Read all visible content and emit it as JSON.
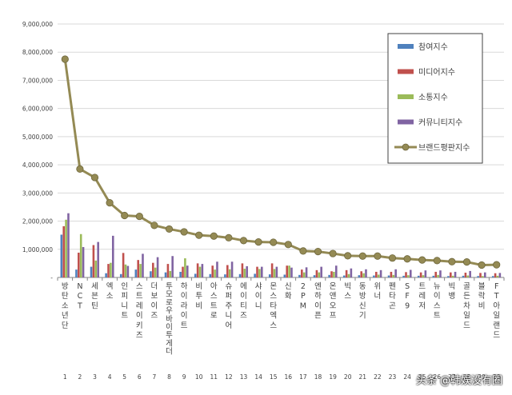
{
  "chart_data": {
    "type": "bar",
    "categories": [
      "방탄소년단",
      "NCT",
      "세븐틴",
      "엑소",
      "인피니트",
      "스트레이키즈",
      "더보이즈",
      "투모로우바이투게더",
      "하이라이트",
      "비투비",
      "아스트로",
      "슈퍼주니어",
      "에이티즈",
      "샤이니",
      "몬스타엑스",
      "신화",
      "2PM",
      "엔하이픈",
      "온앤오프",
      "빅스",
      "동방신기",
      "위너",
      "펜타곤",
      "SF9",
      "트레저",
      "뉴이스트",
      "빅뱅",
      "골든차일드",
      "블락비",
      "FT아일랜드"
    ],
    "ranks": [
      "1",
      "2",
      "3",
      "4",
      "5",
      "6",
      "7",
      "8",
      "9",
      "10",
      "11",
      "12",
      "13",
      "14",
      "15",
      "16",
      "17",
      "18",
      "19",
      "20",
      "21",
      "22",
      "23",
      "24",
      "25",
      "26",
      "27",
      "28",
      "29",
      "30"
    ],
    "series": [
      {
        "name": "참여지수",
        "color": "#4f81bd",
        "values": [
          1520000,
          280000,
          380000,
          150000,
          120000,
          280000,
          220000,
          180000,
          200000,
          130000,
          120000,
          110000,
          120000,
          130000,
          110000,
          100000,
          90000,
          80000,
          90000,
          70000,
          80000,
          70000,
          70000,
          60000,
          60000,
          60000,
          50000,
          60000,
          50000,
          50000
        ]
      },
      {
        "name": "미디어지수",
        "color": "#c0504d",
        "values": [
          1820000,
          880000,
          1150000,
          480000,
          870000,
          620000,
          520000,
          480000,
          380000,
          500000,
          420000,
          440000,
          500000,
          380000,
          500000,
          420000,
          280000,
          260000,
          220000,
          260000,
          220000,
          200000,
          200000,
          190000,
          180000,
          200000,
          180000,
          170000,
          160000,
          150000
        ]
      },
      {
        "name": "소통지수",
        "color": "#9bbb59",
        "values": [
          2050000,
          1540000,
          600000,
          520000,
          460000,
          480000,
          350000,
          230000,
          680000,
          380000,
          280000,
          290000,
          310000,
          300000,
          300000,
          420000,
          180000,
          180000,
          200000,
          120000,
          150000,
          100000,
          90000,
          80000,
          80000,
          90000,
          60000,
          70000,
          50000,
          60000
        ]
      },
      {
        "name": "커뮤니티지수",
        "color": "#8064a2",
        "values": [
          2280000,
          1080000,
          1260000,
          1480000,
          410000,
          840000,
          720000,
          760000,
          420000,
          480000,
          560000,
          560000,
          400000,
          380000,
          380000,
          350000,
          360000,
          380000,
          420000,
          320000,
          290000,
          260000,
          290000,
          270000,
          250000,
          250000,
          200000,
          230000,
          180000,
          160000
        ]
      },
      {
        "name": "브랜드평판지수",
        "color": "#948a54",
        "values": [
          7750000,
          3850000,
          3550000,
          2650000,
          2200000,
          2170000,
          1850000,
          1720000,
          1620000,
          1500000,
          1470000,
          1410000,
          1310000,
          1260000,
          1250000,
          1170000,
          940000,
          920000,
          850000,
          770000,
          760000,
          760000,
          690000,
          660000,
          620000,
          600000,
          560000,
          550000,
          440000,
          450000
        ]
      }
    ],
    "y_ticks": [
      "-",
      "1,000,000",
      "2,000,000",
      "3,000,000",
      "4,000,000",
      "5,000,000",
      "6,000,000",
      "7,000,000",
      "8,000,000",
      "9,000,000"
    ],
    "ylim": [
      0,
      9000000
    ],
    "grid": true,
    "legend": "top-right",
    "title": "",
    "xlabel": "",
    "ylabel": ""
  },
  "watermark": "头条 @韩娱没有圈",
  "colors": {
    "grid": "#d9d9d9",
    "axis": "#868686",
    "plot_bg": "#ffffff",
    "line": "#948a54"
  }
}
